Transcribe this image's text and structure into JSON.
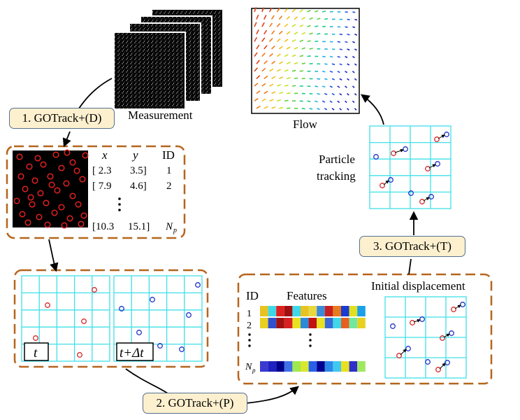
{
  "steps": {
    "detection": "1. GOTrack+(D)",
    "pairing": "2. GOTrack+(P)",
    "tracking": "3. GOTrack+(T)"
  },
  "labels": {
    "measurement": "Measurement",
    "flow": "Flow",
    "particle_tracking_line1": "Particle",
    "particle_tracking_line2": "tracking",
    "initial_displacement": "Initial displacement"
  },
  "detection_table": {
    "headers": [
      "x",
      "y",
      "ID"
    ],
    "rows": [
      [
        "[ 2.3",
        "3.5]",
        "1"
      ],
      [
        "[ 7.9",
        "4.6]",
        "2"
      ]
    ],
    "last_row": [
      "[10.3",
      "15.1]",
      "N",
      "p"
    ]
  },
  "frames": {
    "t_label": "t",
    "t_dt_label": "t+Δt"
  },
  "features": {
    "id_header": "ID",
    "features_header": "Features",
    "row_ids": [
      "1",
      "2"
    ],
    "last_id": "N",
    "last_id_sub": "p"
  },
  "colors": {
    "dashed_box": "#b5651d",
    "grid": "#3fe0e8",
    "particle_red": "#d62828",
    "particle_blue": "#2032c8",
    "step_fill": "#fdf0cf",
    "step_border": "#556f8f"
  }
}
